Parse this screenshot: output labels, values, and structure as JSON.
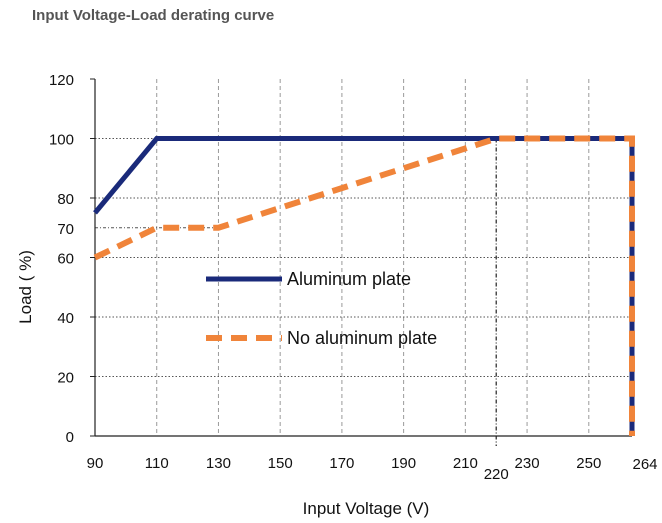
{
  "chart_data": {
    "type": "line",
    "title": "Input Voltage-Load derating curve",
    "xlabel": "Input Voltage (V)",
    "ylabel": "Load ( %)",
    "xlim": [
      90,
      264
    ],
    "ylim": [
      0,
      120
    ],
    "x_ticks": [
      "90",
      "110",
      "130",
      "150",
      "170",
      "190",
      "210",
      "230",
      "250"
    ],
    "x_ticks_extra": [
      "220",
      "264"
    ],
    "y_ticks": [
      "0",
      "20",
      "40",
      "60",
      "80",
      "100",
      "120"
    ],
    "y_ticks_extra": [
      "70"
    ],
    "grid": true,
    "legend_position": "inside-center-left",
    "series": [
      {
        "name": "Aluminum plate",
        "color": "#1a2a7a",
        "style": "solid",
        "points": [
          [
            90,
            75
          ],
          [
            110,
            100
          ],
          [
            264,
            100
          ],
          [
            264,
            0
          ]
        ]
      },
      {
        "name": "No aluminum plate",
        "color": "#f0843a",
        "style": "dashed",
        "points": [
          [
            90,
            60
          ],
          [
            110,
            70
          ],
          [
            130,
            70
          ],
          [
            220,
            100
          ],
          [
            264,
            100
          ],
          [
            264,
            0
          ]
        ]
      }
    ]
  }
}
